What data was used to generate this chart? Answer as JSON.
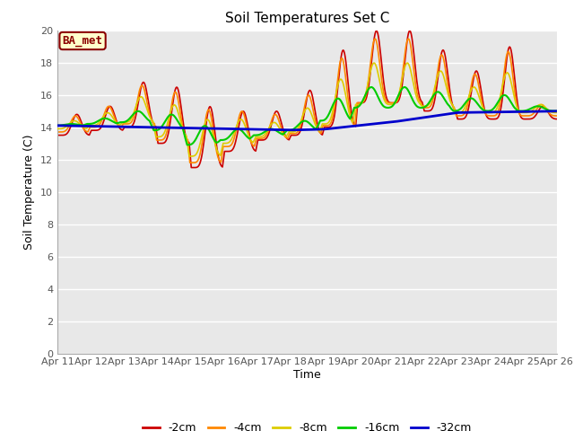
{
  "title": "Soil Temperatures Set C",
  "xlabel": "Time",
  "ylabel": "Soil Temperature (C)",
  "ylim": [
    0,
    20
  ],
  "yticks": [
    0,
    2,
    4,
    6,
    8,
    10,
    12,
    14,
    16,
    18,
    20
  ],
  "fig_facecolor": "#ffffff",
  "plot_bg_color": "#e8e8e8",
  "legend_label": "BA_met",
  "colors": {
    "2cm": "#cc0000",
    "4cm": "#ff8800",
    "8cm": "#ddcc00",
    "16cm": "#00cc00",
    "32cm": "#0000cc"
  },
  "labels": {
    "2cm": "-2cm",
    "4cm": "-4cm",
    "8cm": "-8cm",
    "16cm": "-16cm",
    "32cm": "-32cm"
  },
  "x_tick_labels": [
    "Apr 11",
    "Apr 12",
    "Apr 13",
    "Apr 14",
    "Apr 15",
    "Apr 16",
    "Apr 17",
    "Apr 18",
    "Apr 19",
    "Apr 20",
    "Apr 21",
    "Apr 22",
    "Apr 23",
    "Apr 24",
    "Apr 25",
    "Apr 26"
  ]
}
